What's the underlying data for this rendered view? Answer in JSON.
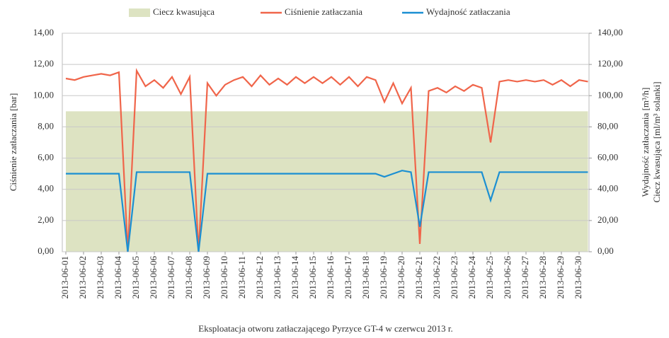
{
  "chart_data": {
    "type": "line",
    "xlabel": "Eksploatacja otworu zatłaczającego Pyrzyce GT-4 w czerwcu 2013 r.",
    "ylabel": "Ciśnienie zatłaczania [bar]",
    "y2label": [
      "Wydajność zatłaczania [m³/h]",
      "Ciecz kwasująca [ml/m³ solanki]"
    ],
    "categories": [
      "2013-06-01",
      null,
      "2013-06-02",
      null,
      "2013-06-03",
      null,
      "2013-06-04",
      null,
      "2013-06-05",
      null,
      "2013-06-06",
      null,
      "2013-06-07",
      null,
      "2013-06-08",
      null,
      "2013-06-09",
      null,
      "2013-06-10",
      null,
      "2013-06-11",
      null,
      "2013-06-12",
      null,
      "2013-06-13",
      null,
      "2013-06-14",
      null,
      "2013-06-15",
      null,
      "2013-06-16",
      null,
      "2013-06-17",
      null,
      "2013-06-18",
      null,
      "2013-06-19",
      null,
      "2013-06-20",
      null,
      "2013-06-21",
      null,
      "2013-06-22",
      null,
      "2013-06-23",
      null,
      "2013-06-24",
      null,
      "2013-06-25",
      null,
      "2013-06-26",
      null,
      "2013-06-27",
      null,
      "2013-06-28",
      null,
      "2013-06-29",
      null,
      "2013-06-30",
      null
    ],
    "series": [
      {
        "name": "Ciecz kwasująca",
        "color": "#dde3c2",
        "kind": "area",
        "axis": "y2",
        "values": [
          90,
          90,
          90,
          90,
          90,
          90,
          90,
          90,
          90,
          90,
          90,
          90,
          90,
          90,
          90,
          90,
          90,
          90,
          90,
          90,
          90,
          90,
          90,
          90,
          90,
          90,
          90,
          90,
          90,
          90,
          90,
          90,
          90,
          90,
          90,
          90,
          90,
          90,
          90,
          90,
          90,
          90,
          90,
          90,
          90,
          90,
          90,
          90,
          90,
          90,
          90,
          90,
          90,
          90,
          90,
          90,
          90,
          90,
          90,
          90
        ]
      },
      {
        "name": "Ciśnienie zatłaczania",
        "color": "#f0654a",
        "kind": "line",
        "values": [
          11.1,
          11.0,
          11.2,
          11.3,
          11.4,
          11.3,
          11.5,
          0,
          11.6,
          10.6,
          11.0,
          10.5,
          11.2,
          10.1,
          11.2,
          0,
          10.8,
          10.0,
          10.7,
          11.0,
          11.2,
          10.6,
          11.3,
          10.7,
          11.1,
          10.7,
          11.2,
          10.8,
          11.2,
          10.8,
          11.2,
          10.7,
          11.2,
          10.6,
          11.2,
          11.0,
          9.6,
          10.8,
          9.5,
          10.5,
          0.5,
          10.3,
          10.5,
          10.2,
          10.6,
          10.3,
          10.7,
          10.5,
          7.0,
          10.9,
          11.0,
          10.9,
          11.0,
          10.9,
          11.0,
          10.7,
          11.0,
          10.6,
          11.0,
          10.9
        ]
      },
      {
        "name": "Wydajność zatłaczania",
        "color": "#1b8fd2",
        "kind": "line",
        "axis": "y2",
        "values": [
          50,
          50,
          50,
          50,
          50,
          50,
          50,
          0,
          51,
          51,
          51,
          51,
          51,
          51,
          51,
          0,
          50,
          50,
          50,
          50,
          50,
          50,
          50,
          50,
          50,
          50,
          50,
          50,
          50,
          50,
          50,
          50,
          50,
          50,
          50,
          50,
          48,
          50,
          52,
          51,
          16,
          51,
          51,
          51,
          51,
          51,
          51,
          51,
          33,
          51,
          51,
          51,
          51,
          51,
          51,
          51,
          51,
          51,
          51,
          51
        ]
      }
    ],
    "ylim": [
      0,
      14
    ],
    "yticks": [
      {
        "value": 0,
        "label": "0,00"
      },
      {
        "value": 2,
        "label": "2,00"
      },
      {
        "value": 4,
        "label": "4,00"
      },
      {
        "value": 6,
        "label": "6,00"
      },
      {
        "value": 8,
        "label": "8,00"
      },
      {
        "value": 10,
        "label": "10,00"
      },
      {
        "value": 12,
        "label": "12,00"
      },
      {
        "value": 14,
        "label": "14,00"
      }
    ],
    "y2lim": [
      0,
      140
    ],
    "y2ticks": [
      {
        "value": 0,
        "label": "0,00"
      },
      {
        "value": 20,
        "label": "20,00"
      },
      {
        "value": 40,
        "label": "40,00"
      },
      {
        "value": 60,
        "label": "60,00"
      },
      {
        "value": 80,
        "label": "80,00"
      },
      {
        "value": 100,
        "label": "100,00"
      },
      {
        "value": 120,
        "label": "120,00"
      },
      {
        "value": 140,
        "label": "140,00"
      }
    ],
    "grid": true,
    "legend": "top"
  }
}
